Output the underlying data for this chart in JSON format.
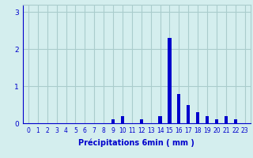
{
  "xlabel": "Précipitations 6min ( mm )",
  "hours": [
    0,
    1,
    2,
    3,
    4,
    5,
    6,
    7,
    8,
    9,
    10,
    11,
    12,
    13,
    14,
    15,
    16,
    17,
    18,
    19,
    20,
    21,
    22,
    23
  ],
  "precip": [
    0,
    0,
    0,
    0,
    0,
    0,
    0,
    0,
    0,
    0.1,
    0.2,
    0,
    0.1,
    0.0,
    0.2,
    2.3,
    0.8,
    0.5,
    0.3,
    0.2,
    0.1,
    0.2,
    0.1,
    0
  ],
  "bar_color": "#0000cc",
  "bg_color": "#d4eeee",
  "grid_color": "#aacccc",
  "axis_color": "#0000cc",
  "text_color": "#0000cc",
  "ylim_max": 3.2,
  "yticks": [
    0,
    1,
    2,
    3
  ],
  "bar_width": 0.35,
  "xlabel_fontsize": 7,
  "tick_fontsize": 5.5
}
